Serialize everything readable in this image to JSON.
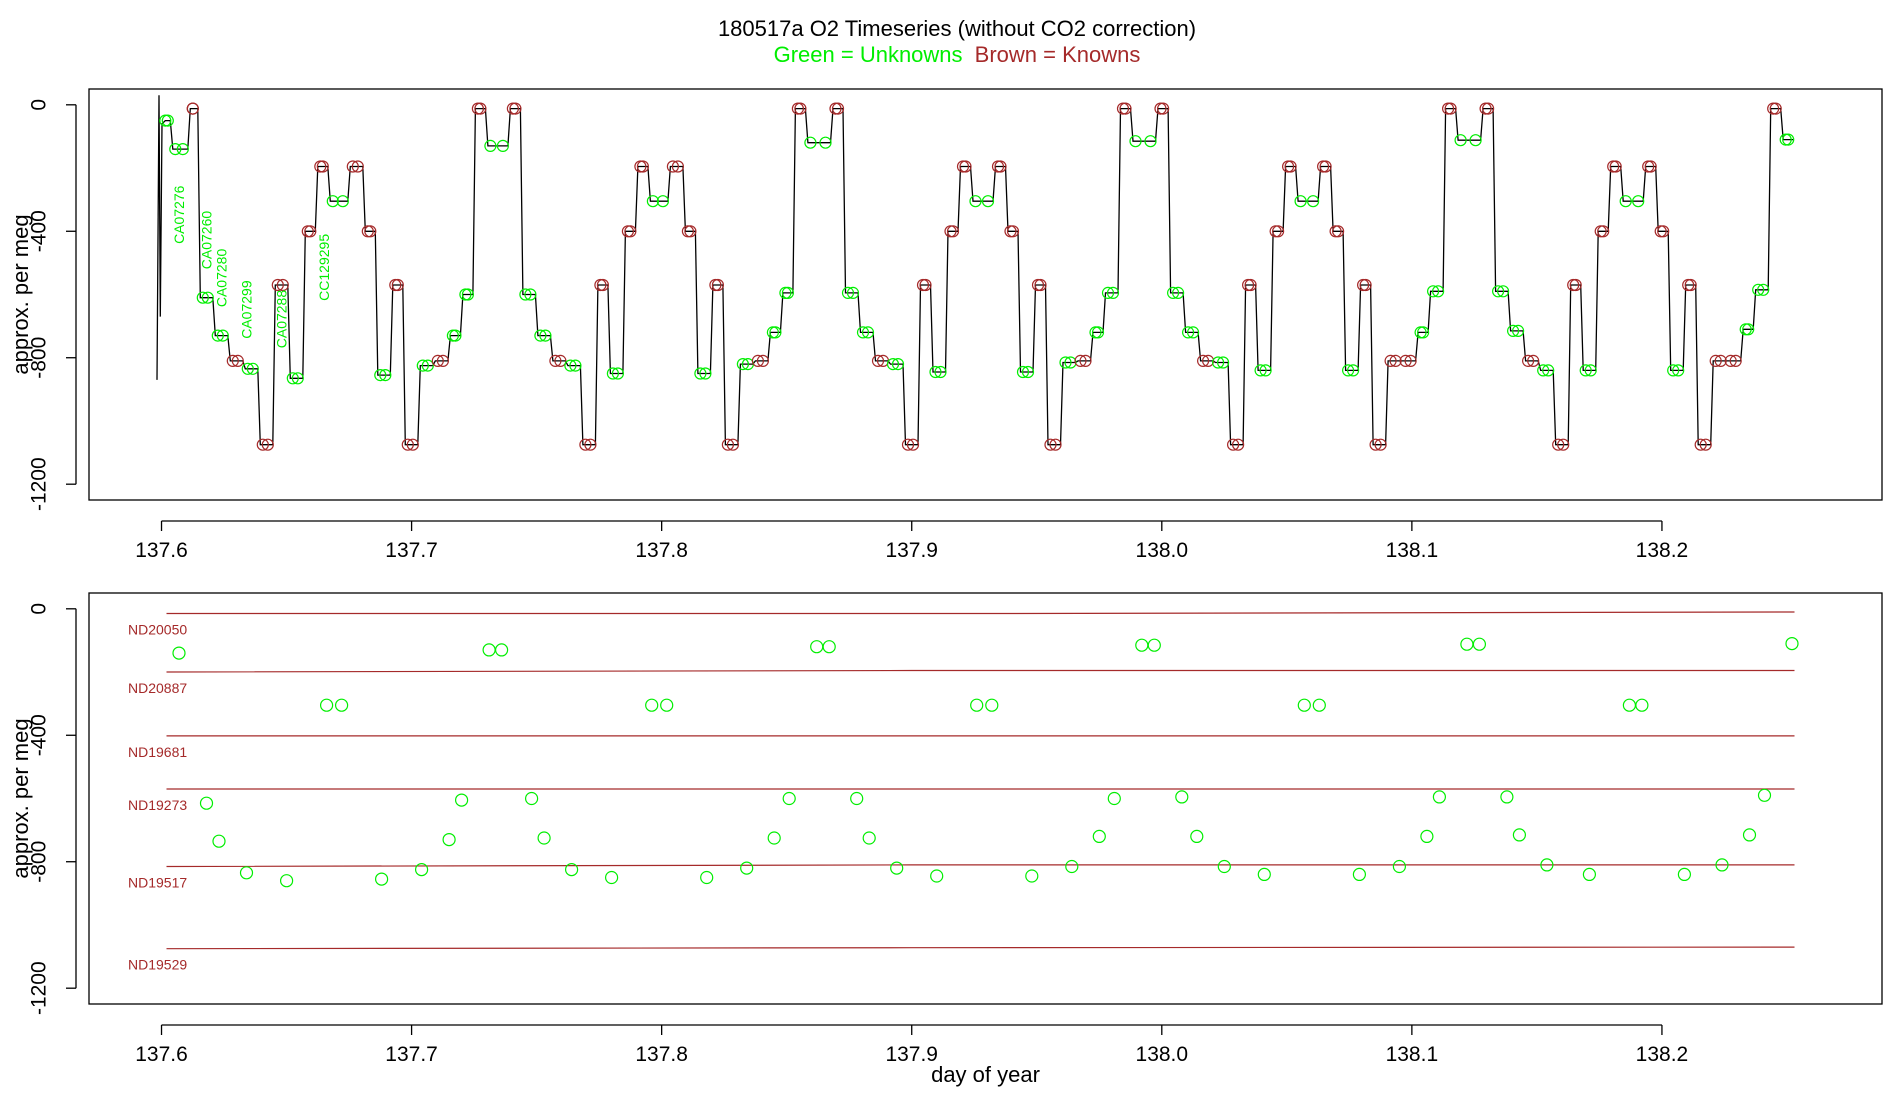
{
  "title": "180517a   O2 Timeseries (without CO2 correction)",
  "subtitle_green": "Green = Unknowns",
  "subtitle_brown": "Brown = Knowns",
  "colors": {
    "unknown": "#00ee00",
    "known": "#a52a2a",
    "trace": "#000000",
    "axis": "#000000"
  },
  "chart_data": [
    {
      "type": "line",
      "ylabel": "approx. per meg",
      "xlabel": "",
      "xlim": [
        137.571,
        138.288
      ],
      "ylim": [
        -1250,
        50
      ],
      "xticks": [
        "137.6",
        "137.7",
        "137.8",
        "137.9",
        "138.0",
        "138.1",
        "138.2"
      ],
      "xtick_values": [
        137.6,
        137.7,
        137.8,
        137.9,
        138.0,
        138.1,
        138.2
      ],
      "yticks": [
        "0",
        "-400",
        "-800",
        "-1200"
      ],
      "ytick_values": [
        0,
        -400,
        -800,
        -1200
      ],
      "sample_labels": [
        {
          "text": "CA07276",
          "x": 137.609,
          "y": -440
        },
        {
          "text": "CA07260",
          "x": 137.62,
          "y": -520
        },
        {
          "text": "CA07280",
          "x": 137.626,
          "y": -640
        },
        {
          "text": "CA07299",
          "x": 137.636,
          "y": -740
        },
        {
          "text": "CA07288",
          "x": 137.65,
          "y": -770
        },
        {
          "text": "CC129295",
          "x": 137.667,
          "y": -620
        }
      ],
      "steps": [
        {
          "x0": 137.5985,
          "x1": 137.5993,
          "v": -870
        },
        {
          "x0": 137.6005,
          "x1": 137.6035,
          "v": -50
        },
        {
          "x0": 137.6035,
          "x1": 137.6105,
          "v": -140
        },
        {
          "x0": 137.6105,
          "x1": 137.6145,
          "v": -12
        },
        {
          "x0": 137.6145,
          "x1": 137.6205,
          "v": -610
        },
        {
          "x0": 137.6205,
          "x1": 137.6265,
          "v": -730
        },
        {
          "x0": 137.6265,
          "x1": 137.6325,
          "v": -810
        },
        {
          "x0": 137.6325,
          "x1": 137.6385,
          "v": -835
        },
        {
          "x0": 137.6385,
          "x1": 137.6445,
          "v": -1075
        },
        {
          "x0": 137.6445,
          "x1": 137.6505,
          "v": -570
        },
        {
          "x0": 137.6505,
          "x1": 137.6565,
          "v": -865
        },
        {
          "x0": 137.6565,
          "x1": 137.6615,
          "v": -400
        },
        {
          "x0": 137.6615,
          "x1": 137.6665,
          "v": -195
        },
        {
          "x0": 137.6665,
          "x1": 137.6745,
          "v": -305
        },
        {
          "x0": 137.6745,
          "x1": 137.6805,
          "v": -195
        },
        {
          "x0": 137.6805,
          "x1": 137.6855,
          "v": -400
        },
        {
          "x0": 137.6855,
          "x1": 137.6915,
          "v": -855
        },
        {
          "x0": 137.6915,
          "x1": 137.6965,
          "v": -570
        },
        {
          "x0": 137.6965,
          "x1": 137.7025,
          "v": -1075
        },
        {
          "x0": 137.7025,
          "x1": 137.7085,
          "v": -825
        },
        {
          "x0": 137.7085,
          "x1": 137.7145,
          "v": -810
        },
        {
          "x0": 137.7145,
          "x1": 137.7195,
          "v": -730
        },
        {
          "x0": 137.7195,
          "x1": 137.7245,
          "v": -600
        },
        {
          "x0": 137.7245,
          "x1": 137.7295,
          "v": -12
        },
        {
          "x0": 137.7295,
          "x1": 137.7385,
          "v": -130
        },
        {
          "x0": 137.7385,
          "x1": 137.7435,
          "v": -12
        },
        {
          "x0": 137.7435,
          "x1": 137.7495,
          "v": -600
        },
        {
          "x0": 137.7495,
          "x1": 137.7555,
          "v": -730
        },
        {
          "x0": 137.7555,
          "x1": 137.7615,
          "v": -810
        },
        {
          "x0": 137.7615,
          "x1": 137.7675,
          "v": -825
        },
        {
          "x0": 137.7675,
          "x1": 137.7735,
          "v": -1075
        },
        {
          "x0": 137.7735,
          "x1": 137.7785,
          "v": -570
        },
        {
          "x0": 137.7785,
          "x1": 137.7845,
          "v": -850
        },
        {
          "x0": 137.7845,
          "x1": 137.7895,
          "v": -400
        },
        {
          "x0": 137.7895,
          "x1": 137.7945,
          "v": -195
        },
        {
          "x0": 137.7945,
          "x1": 137.8025,
          "v": -305
        },
        {
          "x0": 137.8025,
          "x1": 137.8085,
          "v": -195
        },
        {
          "x0": 137.8085,
          "x1": 137.8135,
          "v": -400
        },
        {
          "x0": 137.8135,
          "x1": 137.8195,
          "v": -850
        },
        {
          "x0": 137.8195,
          "x1": 137.8245,
          "v": -570
        },
        {
          "x0": 137.8245,
          "x1": 137.8305,
          "v": -1075
        },
        {
          "x0": 137.8305,
          "x1": 137.8365,
          "v": -820
        },
        {
          "x0": 137.8365,
          "x1": 137.8425,
          "v": -810
        },
        {
          "x0": 137.8425,
          "x1": 137.8475,
          "v": -720
        },
        {
          "x0": 137.8475,
          "x1": 137.8525,
          "v": -595
        },
        {
          "x0": 137.8525,
          "x1": 137.8575,
          "v": -12
        },
        {
          "x0": 137.8575,
          "x1": 137.8675,
          "v": -120
        },
        {
          "x0": 137.8675,
          "x1": 137.8725,
          "v": -12
        },
        {
          "x0": 137.8725,
          "x1": 137.8785,
          "v": -595
        },
        {
          "x0": 137.8785,
          "x1": 137.8845,
          "v": -720
        },
        {
          "x0": 137.8845,
          "x1": 137.8905,
          "v": -810
        },
        {
          "x0": 137.8905,
          "x1": 137.8965,
          "v": -820
        },
        {
          "x0": 137.8965,
          "x1": 137.9025,
          "v": -1075
        },
        {
          "x0": 137.9025,
          "x1": 137.9075,
          "v": -570
        },
        {
          "x0": 137.9075,
          "x1": 137.9135,
          "v": -845
        },
        {
          "x0": 137.9135,
          "x1": 137.9185,
          "v": -400
        },
        {
          "x0": 137.9185,
          "x1": 137.9235,
          "v": -195
        },
        {
          "x0": 137.9235,
          "x1": 137.9325,
          "v": -305
        },
        {
          "x0": 137.9325,
          "x1": 137.9375,
          "v": -195
        },
        {
          "x0": 137.9375,
          "x1": 137.9425,
          "v": -400
        },
        {
          "x0": 137.9425,
          "x1": 137.9485,
          "v": -845
        },
        {
          "x0": 137.9485,
          "x1": 137.9535,
          "v": -570
        },
        {
          "x0": 137.9535,
          "x1": 137.9595,
          "v": -1075
        },
        {
          "x0": 137.9595,
          "x1": 137.9655,
          "v": -815
        },
        {
          "x0": 137.9655,
          "x1": 137.9715,
          "v": -810
        },
        {
          "x0": 137.9715,
          "x1": 137.9765,
          "v": -720
        },
        {
          "x0": 137.9765,
          "x1": 137.9825,
          "v": -595
        },
        {
          "x0": 137.9825,
          "x1": 137.9875,
          "v": -12
        },
        {
          "x0": 137.9875,
          "x1": 137.9975,
          "v": -115
        },
        {
          "x0": 137.9975,
          "x1": 138.0025,
          "v": -12
        },
        {
          "x0": 138.0025,
          "x1": 138.0085,
          "v": -595
        },
        {
          "x0": 138.0085,
          "x1": 138.0145,
          "v": -720
        },
        {
          "x0": 138.0145,
          "x1": 138.0205,
          "v": -810
        },
        {
          "x0": 138.0205,
          "x1": 138.0265,
          "v": -815
        },
        {
          "x0": 138.0265,
          "x1": 138.0325,
          "v": -1075
        },
        {
          "x0": 138.0325,
          "x1": 138.0375,
          "v": -570
        },
        {
          "x0": 138.0375,
          "x1": 138.0435,
          "v": -840
        },
        {
          "x0": 138.0435,
          "x1": 138.0485,
          "v": -400
        },
        {
          "x0": 138.0485,
          "x1": 138.0535,
          "v": -195
        },
        {
          "x0": 138.0535,
          "x1": 138.0625,
          "v": -305
        },
        {
          "x0": 138.0625,
          "x1": 138.0675,
          "v": -195
        },
        {
          "x0": 138.0675,
          "x1": 138.0725,
          "v": -400
        },
        {
          "x0": 138.0725,
          "x1": 138.0785,
          "v": -840
        },
        {
          "x0": 138.0785,
          "x1": 138.0835,
          "v": -570
        },
        {
          "x0": 138.0835,
          "x1": 138.0895,
          "v": -1075
        },
        {
          "x0": 138.0895,
          "x1": 138.0955,
          "v": -810
        },
        {
          "x0": 138.0955,
          "x1": 138.1015,
          "v": -810
        },
        {
          "x0": 138.1015,
          "x1": 138.1065,
          "v": -720
        },
        {
          "x0": 138.1065,
          "x1": 138.1125,
          "v": -590
        },
        {
          "x0": 138.1125,
          "x1": 138.1175,
          "v": -12
        },
        {
          "x0": 138.1175,
          "x1": 138.1275,
          "v": -112
        },
        {
          "x0": 138.1275,
          "x1": 138.1325,
          "v": -12
        },
        {
          "x0": 138.1325,
          "x1": 138.1385,
          "v": -590
        },
        {
          "x0": 138.1385,
          "x1": 138.1445,
          "v": -715
        },
        {
          "x0": 138.1445,
          "x1": 138.1505,
          "v": -810
        },
        {
          "x0": 138.1505,
          "x1": 138.1565,
          "v": -840
        },
        {
          "x0": 138.1565,
          "x1": 138.1625,
          "v": -1075
        },
        {
          "x0": 138.1625,
          "x1": 138.1675,
          "v": -570
        },
        {
          "x0": 138.1675,
          "x1": 138.1735,
          "v": -840
        },
        {
          "x0": 138.1735,
          "x1": 138.1785,
          "v": -400
        },
        {
          "x0": 138.1785,
          "x1": 138.1835,
          "v": -195
        },
        {
          "x0": 138.1835,
          "x1": 138.1925,
          "v": -305
        },
        {
          "x0": 138.1925,
          "x1": 138.1975,
          "v": -195
        },
        {
          "x0": 138.1975,
          "x1": 138.2025,
          "v": -400
        },
        {
          "x0": 138.2025,
          "x1": 138.2085,
          "v": -840
        },
        {
          "x0": 138.2085,
          "x1": 138.2135,
          "v": -570
        },
        {
          "x0": 138.2135,
          "x1": 138.2195,
          "v": -1075
        },
        {
          "x0": 138.2195,
          "x1": 138.2255,
          "v": -810
        },
        {
          "x0": 138.2255,
          "x1": 138.2315,
          "v": -810
        },
        {
          "x0": 138.2315,
          "x1": 138.2365,
          "v": -710
        },
        {
          "x0": 138.2365,
          "x1": 138.2425,
          "v": -585
        },
        {
          "x0": 138.2425,
          "x1": 138.2475,
          "v": -12
        },
        {
          "x0": 138.2475,
          "x1": 138.2525,
          "v": -110
        }
      ]
    },
    {
      "type": "scatter",
      "ylabel": "approx. per meg",
      "xlabel": "day of year",
      "xlim": [
        137.571,
        138.288
      ],
      "ylim": [
        -1250,
        50
      ],
      "xticks": [
        "137.6",
        "137.7",
        "137.8",
        "137.9",
        "138.0",
        "138.1",
        "138.2"
      ],
      "xtick_values": [
        137.6,
        137.7,
        137.8,
        137.9,
        138.0,
        138.1,
        138.2
      ],
      "yticks": [
        "0",
        "-400",
        "-800",
        "-1200"
      ],
      "ytick_values": [
        0,
        -400,
        -800,
        -1200
      ],
      "standards": [
        {
          "name": "ND20050",
          "x": [
            137.602,
            137.94,
            138.253
          ],
          "y": [
            -15,
            -15,
            -10
          ]
        },
        {
          "name": "ND20887",
          "x": [
            137.602,
            137.9,
            138.253
          ],
          "y": [
            -200,
            -195,
            -195
          ]
        },
        {
          "name": "ND19681",
          "x": [
            137.602,
            137.9,
            138.253
          ],
          "y": [
            -402,
            -402,
            -402
          ]
        },
        {
          "name": "ND19273",
          "x": [
            137.602,
            137.9,
            138.253
          ],
          "y": [
            -570,
            -570,
            -570
          ]
        },
        {
          "name": "ND19517",
          "x": [
            137.602,
            137.9,
            138.253
          ],
          "y": [
            -815,
            -810,
            -810
          ]
        },
        {
          "name": "ND19529",
          "x": [
            137.602,
            137.9,
            138.253
          ],
          "y": [
            -1075,
            -1072,
            -1070
          ]
        }
      ],
      "unknowns": {
        "x": [
          137.607,
          137.618,
          137.623,
          137.634,
          137.65,
          137.666,
          137.672,
          137.688,
          137.704,
          137.715,
          137.72,
          137.731,
          137.736,
          137.748,
          137.753,
          137.764,
          137.78,
          137.796,
          137.802,
          137.818,
          137.834,
          137.845,
          137.851,
          137.862,
          137.867,
          137.878,
          137.883,
          137.894,
          137.91,
          137.926,
          137.932,
          137.948,
          137.964,
          137.975,
          137.981,
          137.992,
          137.997,
          138.008,
          138.014,
          138.025,
          138.041,
          138.057,
          138.063,
          138.079,
          138.095,
          138.106,
          138.111,
          138.122,
          138.127,
          138.138,
          138.143,
          138.154,
          138.171,
          138.187,
          138.192,
          138.209,
          138.224,
          138.235,
          138.241,
          138.252
        ],
        "y": [
          -140,
          -615,
          -735,
          -835,
          -860,
          -305,
          -305,
          -855,
          -825,
          -730,
          -605,
          -130,
          -130,
          -600,
          -725,
          -825,
          -850,
          -305,
          -305,
          -850,
          -820,
          -725,
          -600,
          -120,
          -120,
          -600,
          -725,
          -820,
          -845,
          -305,
          -305,
          -845,
          -815,
          -720,
          -600,
          -115,
          -115,
          -595,
          -720,
          -815,
          -840,
          -305,
          -305,
          -840,
          -815,
          -720,
          -595,
          -112,
          -112,
          -595,
          -715,
          -810,
          -840,
          -305,
          -305,
          -840,
          -810,
          -715,
          -590,
          -110
        ]
      }
    }
  ]
}
